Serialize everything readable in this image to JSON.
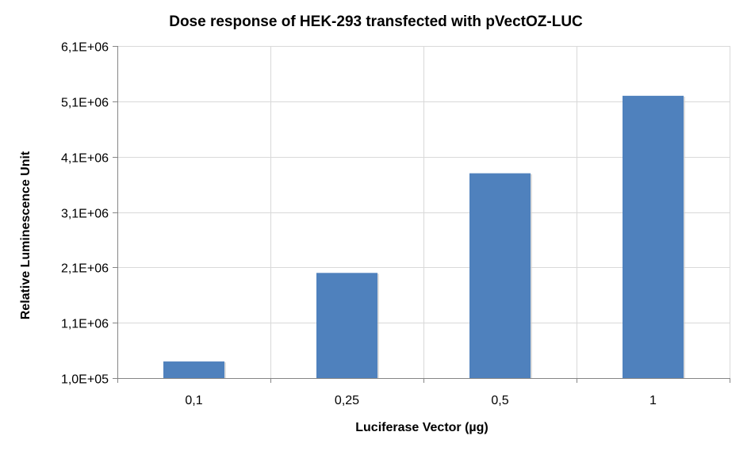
{
  "chart_data": {
    "type": "bar",
    "title": "Dose response of HEK-293 transfected with pVectOZ-LUC",
    "xlabel": "Luciferase Vector (µg)",
    "ylabel": "Relative Luminescence Unit",
    "categories": [
      "0,1",
      "0,25",
      "0,5",
      "1"
    ],
    "values": [
      400000,
      2000000,
      3800000,
      5200000
    ],
    "ylim": [
      100000,
      6100000
    ],
    "yticks": [
      100000,
      1100000,
      2100000,
      3100000,
      4100000,
      5100000,
      6100000
    ],
    "ytick_labels": [
      "1,0E+05",
      "1,1E+06",
      "2,1E+06",
      "3,1E+06",
      "4,1E+06",
      "5,1E+06",
      "6,1E+06"
    ],
    "grid": true,
    "colors": {
      "bar": "#4f81bd",
      "grid": "#d9d9d9",
      "axis": "#868686"
    }
  }
}
